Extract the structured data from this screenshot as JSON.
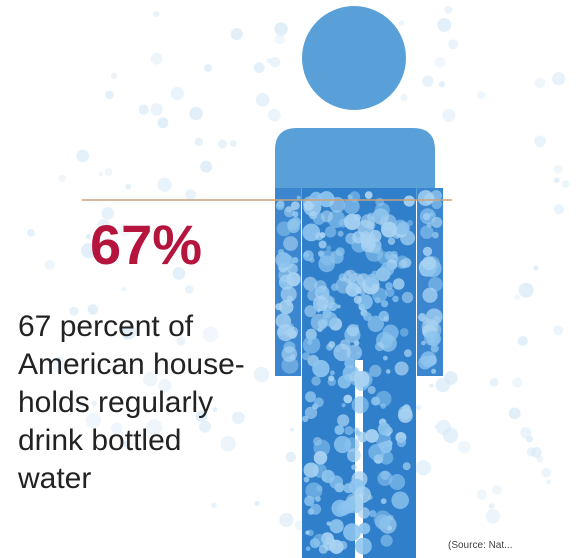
{
  "stat": {
    "percent_label": "67%",
    "fill_fraction": 0.67,
    "caption_lines": [
      "67 percent of",
      "American house-",
      "holds regularly",
      "drink bottled",
      "water"
    ]
  },
  "source_note": "(Source: Nat...",
  "colors": {
    "figure_blue": "#5aa0d8",
    "bubble_blue": "#1f74c4",
    "stat_red": "#b5143c",
    "rule_line": "#c9a27a",
    "caption_text": "#222222"
  }
}
